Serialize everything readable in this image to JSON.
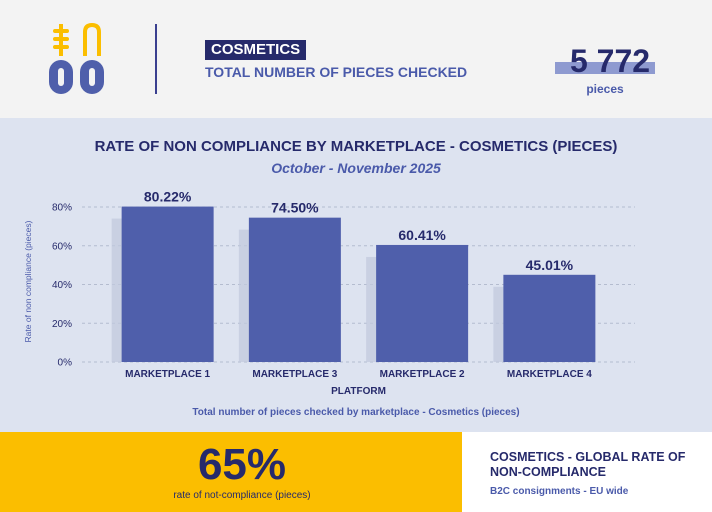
{
  "header": {
    "category": "COSMETICS",
    "subtitle": "TOTAL NUMBER OF PIECES CHECKED",
    "total": "5 772",
    "total_unit": "pieces"
  },
  "colors": {
    "navy": "#262a6b",
    "accent": "#4a5aaa",
    "bar": "#4f5fab",
    "panel": "#dde3f0",
    "yellow": "#fbbe00"
  },
  "chart_data": {
    "type": "bar",
    "title": "RATE OF NON COMPLIANCE BY MARKETPLACE - COSMETICS (PIECES)",
    "subtitle": "October - November 2025",
    "categories": [
      "MARKETPLACE 1",
      "MARKETPLACE 3",
      "MARKETPLACE 2",
      "MARKETPLACE 4"
    ],
    "values": [
      80.22,
      74.5,
      60.41,
      45.01
    ],
    "data_labels": [
      "80.22%",
      "74.50%",
      "60.41%",
      "45.01%"
    ],
    "ylim": [
      0,
      80
    ],
    "yticks": [
      0,
      20,
      40,
      60,
      80
    ],
    "ytick_labels": [
      "0%",
      "20%",
      "40%",
      "60%",
      "80%"
    ],
    "xlabel": "PLATFORM",
    "ylabel": "Rate of non compliance (pieces)",
    "grid": true,
    "footer": "Total number of pieces checked by marketplace - Cosmetics (pieces)"
  },
  "summary": {
    "rate": "65%",
    "rate_caption": "rate of not-compliance (pieces)",
    "title": "COSMETICS - GLOBAL RATE OF NON-COMPLIANCE",
    "subtitle": "B2C consignments - EU wide"
  }
}
